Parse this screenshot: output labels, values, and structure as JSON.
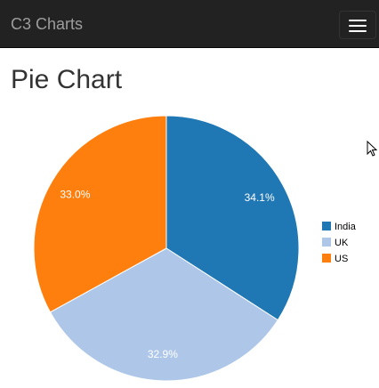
{
  "navbar": {
    "brand": "C3 Charts",
    "menu_icon": "hamburger-menu-icon"
  },
  "page": {
    "title": "Pie Chart"
  },
  "chart_data": {
    "type": "pie",
    "categories": [
      "India",
      "UK",
      "US"
    ],
    "values": [
      34.1,
      32.9,
      33.0
    ],
    "labels": [
      "34.1%",
      "32.9%",
      "33.0%"
    ],
    "colors": [
      "#1f77b4",
      "#aec7e8",
      "#ff7f0e"
    ],
    "legend_position": "right",
    "start_angle_deg": 0
  }
}
